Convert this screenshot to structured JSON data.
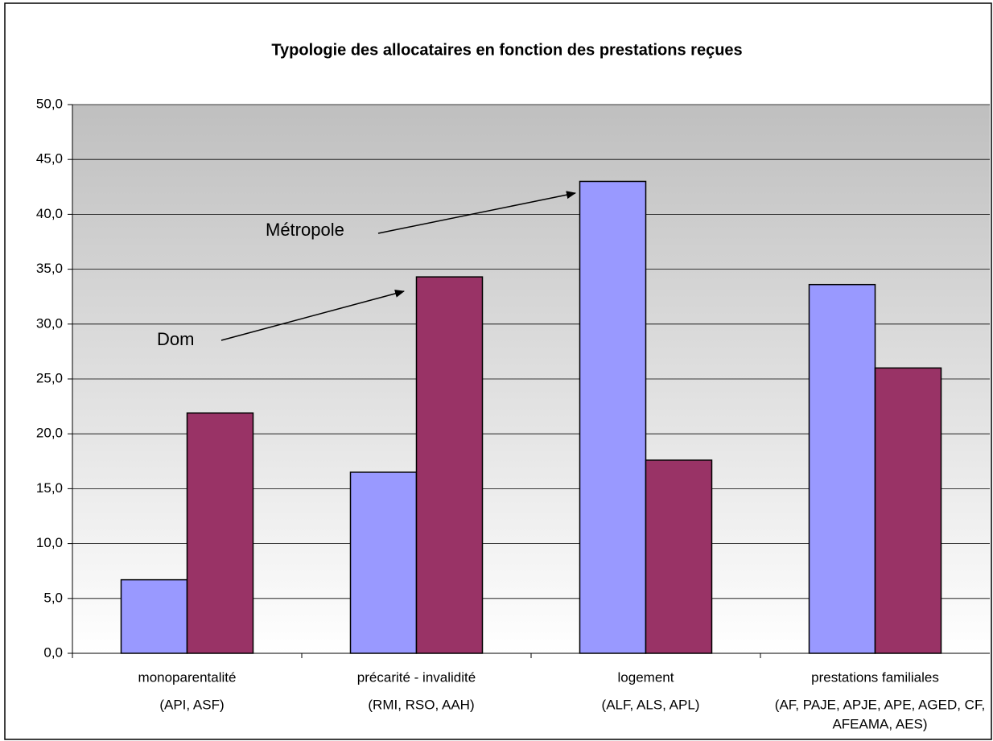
{
  "chart_data": {
    "type": "bar",
    "title": "Typologie des allocataires en fonction des prestations reçues",
    "categories": [
      [
        "monoparentalité",
        "(API, ASF)"
      ],
      [
        "précarité - invalidité",
        "(RMI, RSO, AAH)"
      ],
      [
        "logement",
        "(ALF, ALS, APL)"
      ],
      [
        "prestations familiales",
        "(AF, PAJE, APJE, APE, AGED, CF,",
        "AFEAMA, AES)"
      ]
    ],
    "series": [
      {
        "name": "Métropole",
        "color": "#9999ff",
        "values": [
          6.7,
          16.5,
          43.0,
          33.6
        ]
      },
      {
        "name": "Dom",
        "color": "#993366",
        "values": [
          21.9,
          34.3,
          17.6,
          26.0
        ]
      }
    ],
    "ylim": [
      0,
      50
    ],
    "yticks": [
      {
        "value": 0,
        "label": "0,0"
      },
      {
        "value": 5,
        "label": "5,0"
      },
      {
        "value": 10,
        "label": "10,0"
      },
      {
        "value": 15,
        "label": "15,0"
      },
      {
        "value": 20,
        "label": "20,0"
      },
      {
        "value": 25,
        "label": "25,0"
      },
      {
        "value": 30,
        "label": "30,0"
      },
      {
        "value": 35,
        "label": "35,0"
      },
      {
        "value": 40,
        "label": "40,0"
      },
      {
        "value": 45,
        "label": "45,0"
      },
      {
        "value": 50,
        "label": "50,0"
      }
    ],
    "grid": true
  }
}
